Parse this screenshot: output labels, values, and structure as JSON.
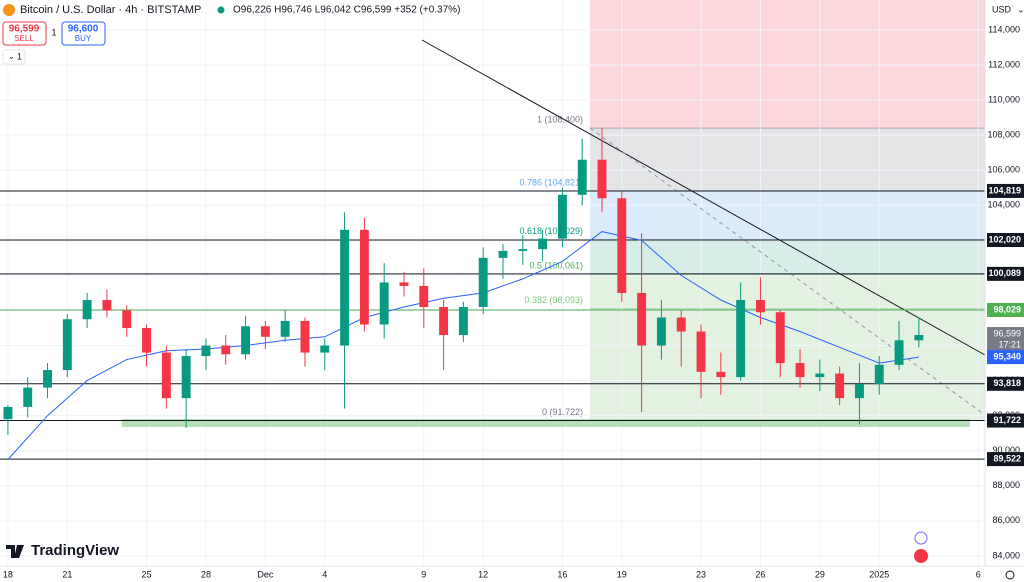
{
  "header": {
    "symbol": "Bitcoin / U.S. Dollar · 4h · BITSTAMP",
    "ohlc": "O96,226 H96,746 L96,042 C96,599 +352 (+0.37%)",
    "sell_price": "96,599",
    "sell": "SELL",
    "quantity": "1",
    "buy_price": "96,600",
    "buy": "BUY",
    "interval_menu": "1",
    "currency": "USD",
    "logo": "TradingView"
  },
  "chart_data": {
    "type": "candlestick",
    "x": [
      0,
      1,
      2,
      3,
      4,
      5,
      6,
      7,
      8,
      9,
      10,
      11,
      12,
      13,
      14,
      15,
      16,
      17,
      18,
      19,
      20,
      21,
      22,
      23,
      24,
      25,
      26,
      27,
      28,
      29,
      30,
      31,
      32,
      33,
      34,
      35,
      36,
      37,
      38,
      39,
      40,
      41,
      42,
      43,
      44,
      45,
      46
    ],
    "open": [
      91800,
      92500,
      93600,
      94600,
      97500,
      98600,
      98000,
      97000,
      95600,
      93000,
      95400,
      96000,
      95500,
      97100,
      96500,
      97400,
      95600,
      96000,
      102600,
      97200,
      99600,
      99400,
      98200,
      96600,
      98200,
      101000,
      101400,
      101500,
      102100,
      104600,
      106600,
      104400,
      99000,
      96000,
      97600,
      96800,
      94500,
      94200,
      98600,
      97900,
      95000,
      94200,
      94400,
      93000,
      93800,
      94900,
      96300
    ],
    "high": [
      92600,
      94200,
      95000,
      97800,
      99000,
      99200,
      98300,
      97200,
      96000,
      95800,
      96400,
      96600,
      97700,
      97400,
      98000,
      97600,
      96400,
      103600,
      103300,
      100700,
      100200,
      100400,
      98600,
      98500,
      101600,
      101800,
      102300,
      102600,
      105000,
      107800,
      108400,
      104800,
      102400,
      98600,
      98000,
      97200,
      95600,
      99600,
      99900,
      98000,
      95800,
      95200,
      94800,
      95000,
      95400,
      97400,
      97600
    ],
    "low": [
      90900,
      91900,
      93000,
      94200,
      97000,
      97600,
      96500,
      94800,
      92400,
      91300,
      94600,
      94900,
      95200,
      95800,
      96200,
      94800,
      94600,
      92400,
      96800,
      96400,
      98800,
      97000,
      94600,
      96200,
      97800,
      99800,
      100600,
      100800,
      101600,
      104000,
      103600,
      98500,
      92200,
      95200,
      94800,
      93000,
      93200,
      94000,
      97200,
      94200,
      93600,
      93400,
      92600,
      91500,
      93200,
      94600,
      95900
    ],
    "close": [
      92500,
      93600,
      94600,
      97500,
      98600,
      98000,
      97000,
      95600,
      93000,
      95400,
      96000,
      95500,
      97100,
      96500,
      97400,
      95600,
      96000,
      102600,
      97200,
      99600,
      99400,
      98200,
      96600,
      98200,
      101000,
      101400,
      101500,
      102100,
      104600,
      106600,
      104400,
      99000,
      96000,
      97600,
      96800,
      94500,
      94200,
      98600,
      97900,
      95000,
      94200,
      94400,
      93000,
      93800,
      94900,
      96300,
      96600
    ],
    "up_color": "#089981",
    "down_color": "#f23645",
    "moving_average": {
      "color": "#2962ff",
      "x": [
        0,
        2,
        4,
        6,
        8,
        10,
        12,
        14,
        16,
        18,
        20,
        22,
        24,
        26,
        28,
        30,
        32,
        34,
        36,
        38,
        40,
        42,
        44,
        46
      ],
      "values": [
        89500,
        92000,
        94000,
        95200,
        95700,
        95800,
        96000,
        96300,
        96500,
        97600,
        98200,
        98700,
        99000,
        99800,
        100800,
        102500,
        102000,
        100000,
        98600,
        97600,
        96800,
        95900,
        95000,
        95340
      ],
      "value_label": {
        "value": 95340,
        "label": "95,340"
      }
    },
    "last_price": {
      "value": 96599,
      "label": "96,599",
      "countdown": "17:21",
      "color": "#787b86"
    },
    "levels": [
      {
        "value": 104819,
        "label": "104,819",
        "color": "#131722"
      },
      {
        "value": 102020,
        "label": "102,020",
        "color": "#131722"
      },
      {
        "value": 100089,
        "label": "100,089",
        "color": "#131722"
      },
      {
        "value": 98029,
        "label": "98,029",
        "color": "#4caf50"
      },
      {
        "value": 93818,
        "label": "93,818",
        "color": "#131722"
      },
      {
        "value": 91722,
        "label": "91,722",
        "color": "#131722"
      },
      {
        "value": 89522,
        "label": "89,522",
        "color": "#131722"
      }
    ],
    "fibonacci": [
      {
        "value": 108400,
        "label": "1 (108,400)",
        "color": "#787b86",
        "zone_color": "#e3e4e6"
      },
      {
        "value": 104821,
        "label": "0.786 (104,821)",
        "color": "#64a5f5",
        "zone_color": "#dcebfa"
      },
      {
        "value": 102029,
        "label": "0.618 (102,029)",
        "color": "#089981",
        "zone_color": "#d6ede8"
      },
      {
        "value": 100061,
        "label": "0.5 (100,061)",
        "color": "#4caf50",
        "zone_color": "#e2f1e0"
      },
      {
        "value": 98093,
        "label": "0.382 (98,093)",
        "color": "#81c784",
        "zone_color": "#e2f1e0"
      },
      {
        "value": 91722,
        "label": "0 (91,722)",
        "color": "#787b86"
      }
    ],
    "risk_zone_color": "#fbd6da",
    "xlim": [
      -0.4,
      49.34
    ],
    "xticks": [
      {
        "value": 0,
        "label": "18"
      },
      {
        "value": 3,
        "label": "21"
      },
      {
        "value": 7,
        "label": "25"
      },
      {
        "value": 10,
        "label": "28"
      },
      {
        "value": 13,
        "label": "Dec"
      },
      {
        "value": 16,
        "label": "4"
      },
      {
        "value": 21,
        "label": "9"
      },
      {
        "value": 24,
        "label": "12"
      },
      {
        "value": 28,
        "label": "16"
      },
      {
        "value": 31,
        "label": "19"
      },
      {
        "value": 35,
        "label": "23"
      },
      {
        "value": 38,
        "label": "26"
      },
      {
        "value": 41,
        "label": "29"
      },
      {
        "value": 44,
        "label": "2025"
      },
      {
        "value": 49,
        "label": "6"
      }
    ],
    "ylim": [
      83424,
      115711
    ],
    "yticks": [
      {
        "value": 84000,
        "label": "84,000"
      },
      {
        "value": 86000,
        "label": "86,000"
      },
      {
        "value": 88000,
        "label": "88,000"
      },
      {
        "value": 90000,
        "label": "90,000"
      },
      {
        "value": 92000,
        "label": "92,000"
      },
      {
        "value": 94000,
        "label": "94,000"
      },
      {
        "value": 96000,
        "label": "96,000"
      },
      {
        "value": 98000,
        "label": "98,000"
      },
      {
        "value": 100000,
        "label": "100,000"
      },
      {
        "value": 102000,
        "label": "102,000"
      },
      {
        "value": 104000,
        "label": "104,000"
      },
      {
        "value": 106000,
        "label": "106,000"
      },
      {
        "value": 108000,
        "label": "108,000"
      },
      {
        "value": 110000,
        "label": "110,000"
      },
      {
        "value": 112000,
        "label": "112,000"
      },
      {
        "value": 114000,
        "label": "114,000"
      }
    ]
  }
}
